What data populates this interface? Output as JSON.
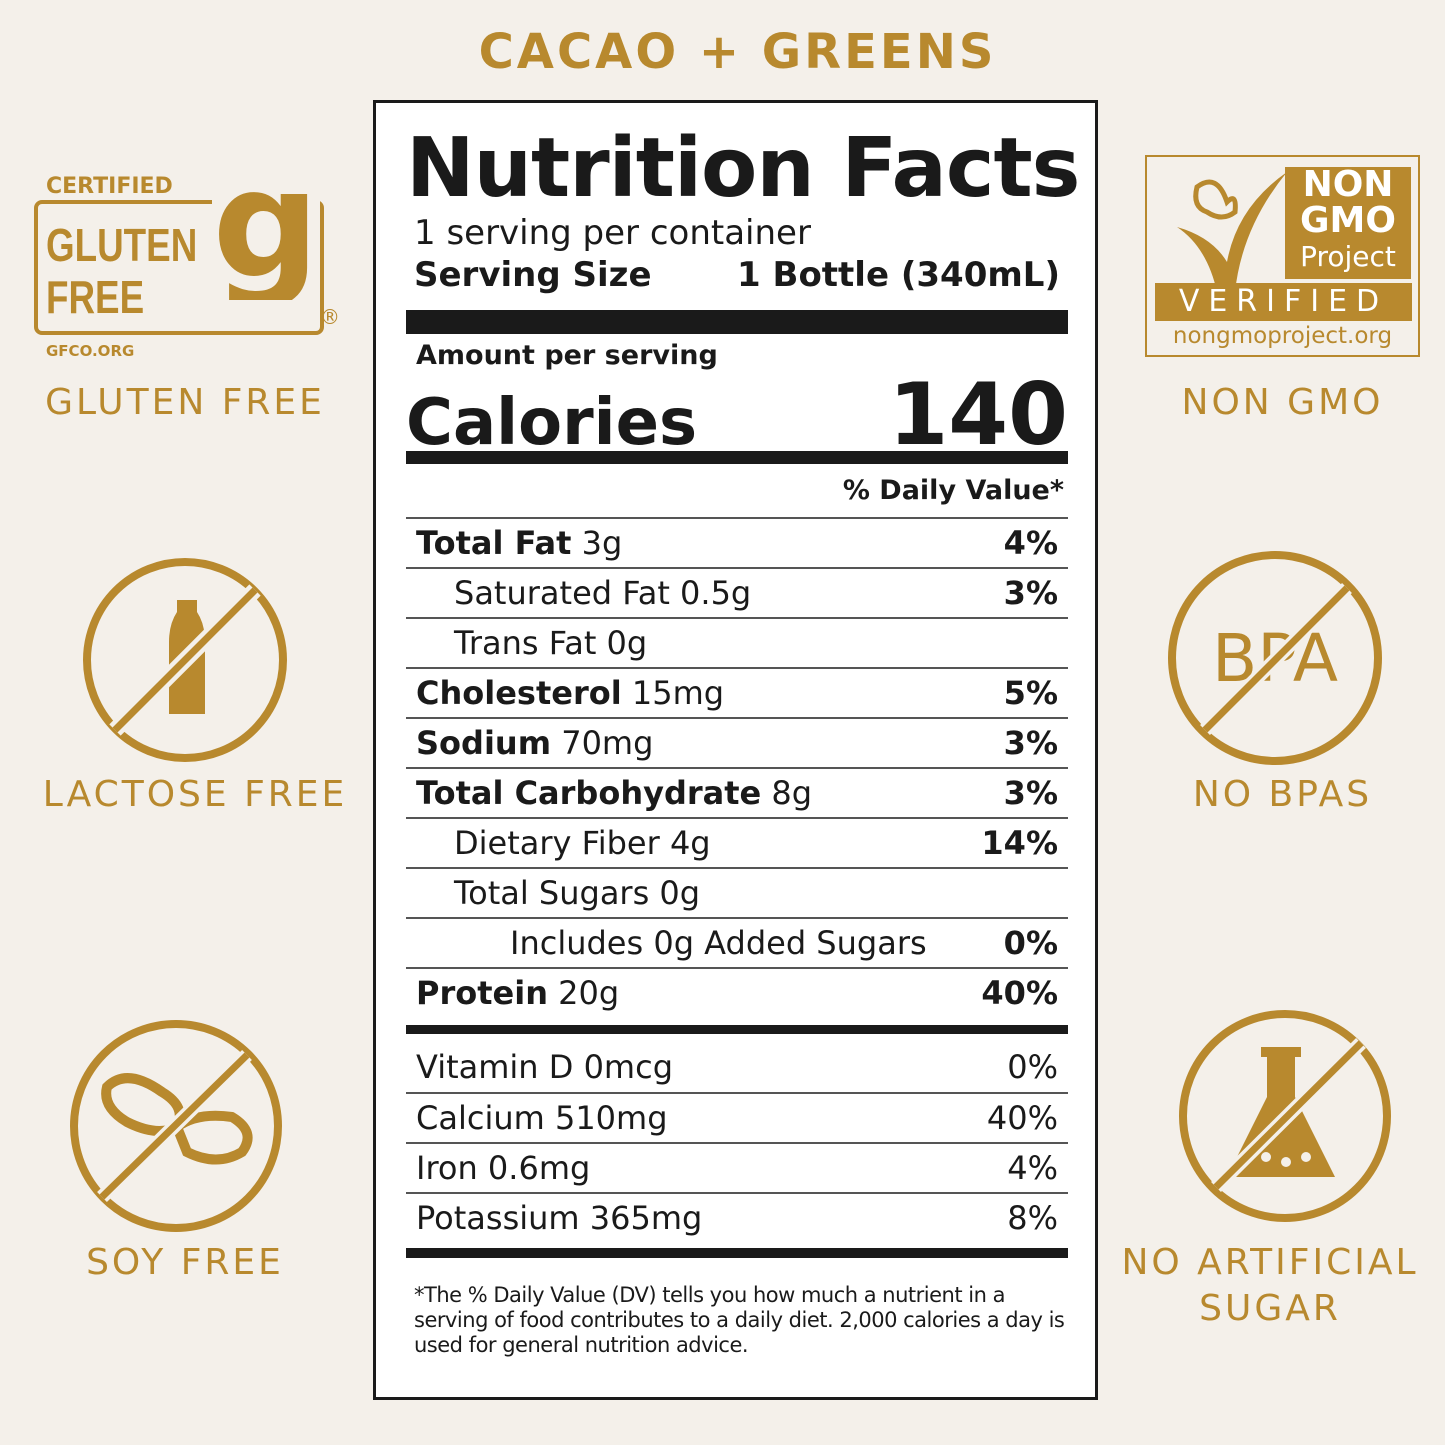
{
  "title": "CACAO + GREENS",
  "colors": {
    "gold": "#b8892e",
    "background": "#f4f0ea"
  },
  "badges": {
    "gluten_logo": {
      "top": "CERTIFIED",
      "main1": "GLUTEN",
      "main2": "FREE",
      "url": "GFCO.ORG"
    },
    "gluten_free": "GLUTEN FREE",
    "nongmo_logo": {
      "l1": "NON",
      "l2": "GMO",
      "l3": "Project",
      "verified": "VERIFIED",
      "url": "nongmoproject.org"
    },
    "non_gmo": "NON GMO",
    "lactose_free": "LACTOSE FREE",
    "no_bpas": "NO BPAS",
    "bpa_icon_text": "BPA",
    "soy_free": "SOY FREE",
    "no_artificial_sugar_1": "NO ARTIFICIAL",
    "no_artificial_sugar_2": "SUGAR"
  },
  "label": {
    "heading": "Nutrition Facts",
    "servings": "1 serving per container",
    "serving_size_label": "Serving Size",
    "serving_size_value": "1 Bottle (340mL)",
    "amount_per_serving": "Amount per serving",
    "calories_label": "Calories",
    "calories_value": "140",
    "dv_header": "% Daily Value*",
    "nutrients": [
      {
        "name": "Total Fat",
        "amount": "3g",
        "dv": "4%"
      },
      {
        "name": "Saturated Fat 0.5g",
        "amount": "",
        "dv": "3%"
      },
      {
        "name": "Trans Fat 0g",
        "amount": "",
        "dv": ""
      },
      {
        "name": "Cholesterol",
        "amount": "15mg",
        "dv": "5%"
      },
      {
        "name": "Sodium",
        "amount": "70mg",
        "dv": "3%"
      },
      {
        "name": "Total Carbohydrate",
        "amount": "8g",
        "dv": "3%"
      },
      {
        "name": "Dietary Fiber 4g",
        "amount": "",
        "dv": "14%"
      },
      {
        "name": "Total Sugars 0g",
        "amount": "",
        "dv": ""
      },
      {
        "name": "Includes 0g Added Sugars",
        "amount": "",
        "dv": "0%"
      },
      {
        "name": "Protein",
        "amount": "20g",
        "dv": "40%"
      }
    ],
    "vitamins": [
      {
        "name": "Vitamin D 0mcg",
        "dv": "0%"
      },
      {
        "name": "Calcium 510mg",
        "dv": "40%"
      },
      {
        "name": "Iron 0.6mg",
        "dv": "4%"
      },
      {
        "name": "Potassium 365mg",
        "dv": "8%"
      }
    ],
    "footnote": "*The % Daily Value (DV) tells you how much a nutrient in a serving of food contributes to a daily diet. 2,000 calories a day is used for general nutrition advice."
  }
}
